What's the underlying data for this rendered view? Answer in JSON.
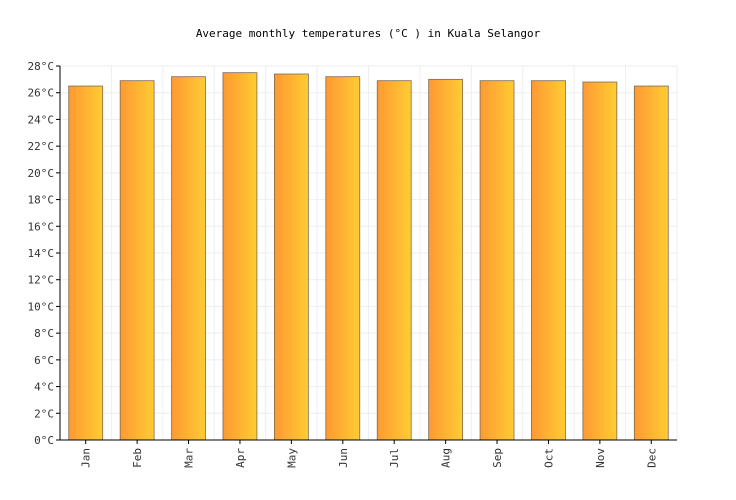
{
  "chart_data": {
    "type": "bar",
    "title": "Average monthly temperatures (°C ) in Kuala Selangor",
    "categories": [
      "Jan",
      "Feb",
      "Mar",
      "Apr",
      "May",
      "Jun",
      "Jul",
      "Aug",
      "Sep",
      "Oct",
      "Nov",
      "Dec"
    ],
    "series": [
      {
        "values": [
          26.5,
          26.9,
          27.2,
          27.5,
          27.4,
          27.2,
          26.9,
          27.0,
          26.9,
          26.9,
          26.8,
          26.5
        ]
      }
    ],
    "y_ticks": [
      "0°C",
      "2°C",
      "4°C",
      "6°C",
      "8°C",
      "10°C",
      "12°C",
      "14°C",
      "16°C",
      "18°C",
      "20°C",
      "22°C",
      "24°C",
      "26°C",
      "28°C"
    ],
    "ylim": [
      0,
      28
    ],
    "ystep": 2,
    "grid": true,
    "colors": {
      "bar_start": "#ff9933",
      "bar_end": "#ffcc33",
      "bar_stroke": "#7f6a4d",
      "grid": "#eeeeee",
      "axis": "#000000"
    }
  }
}
